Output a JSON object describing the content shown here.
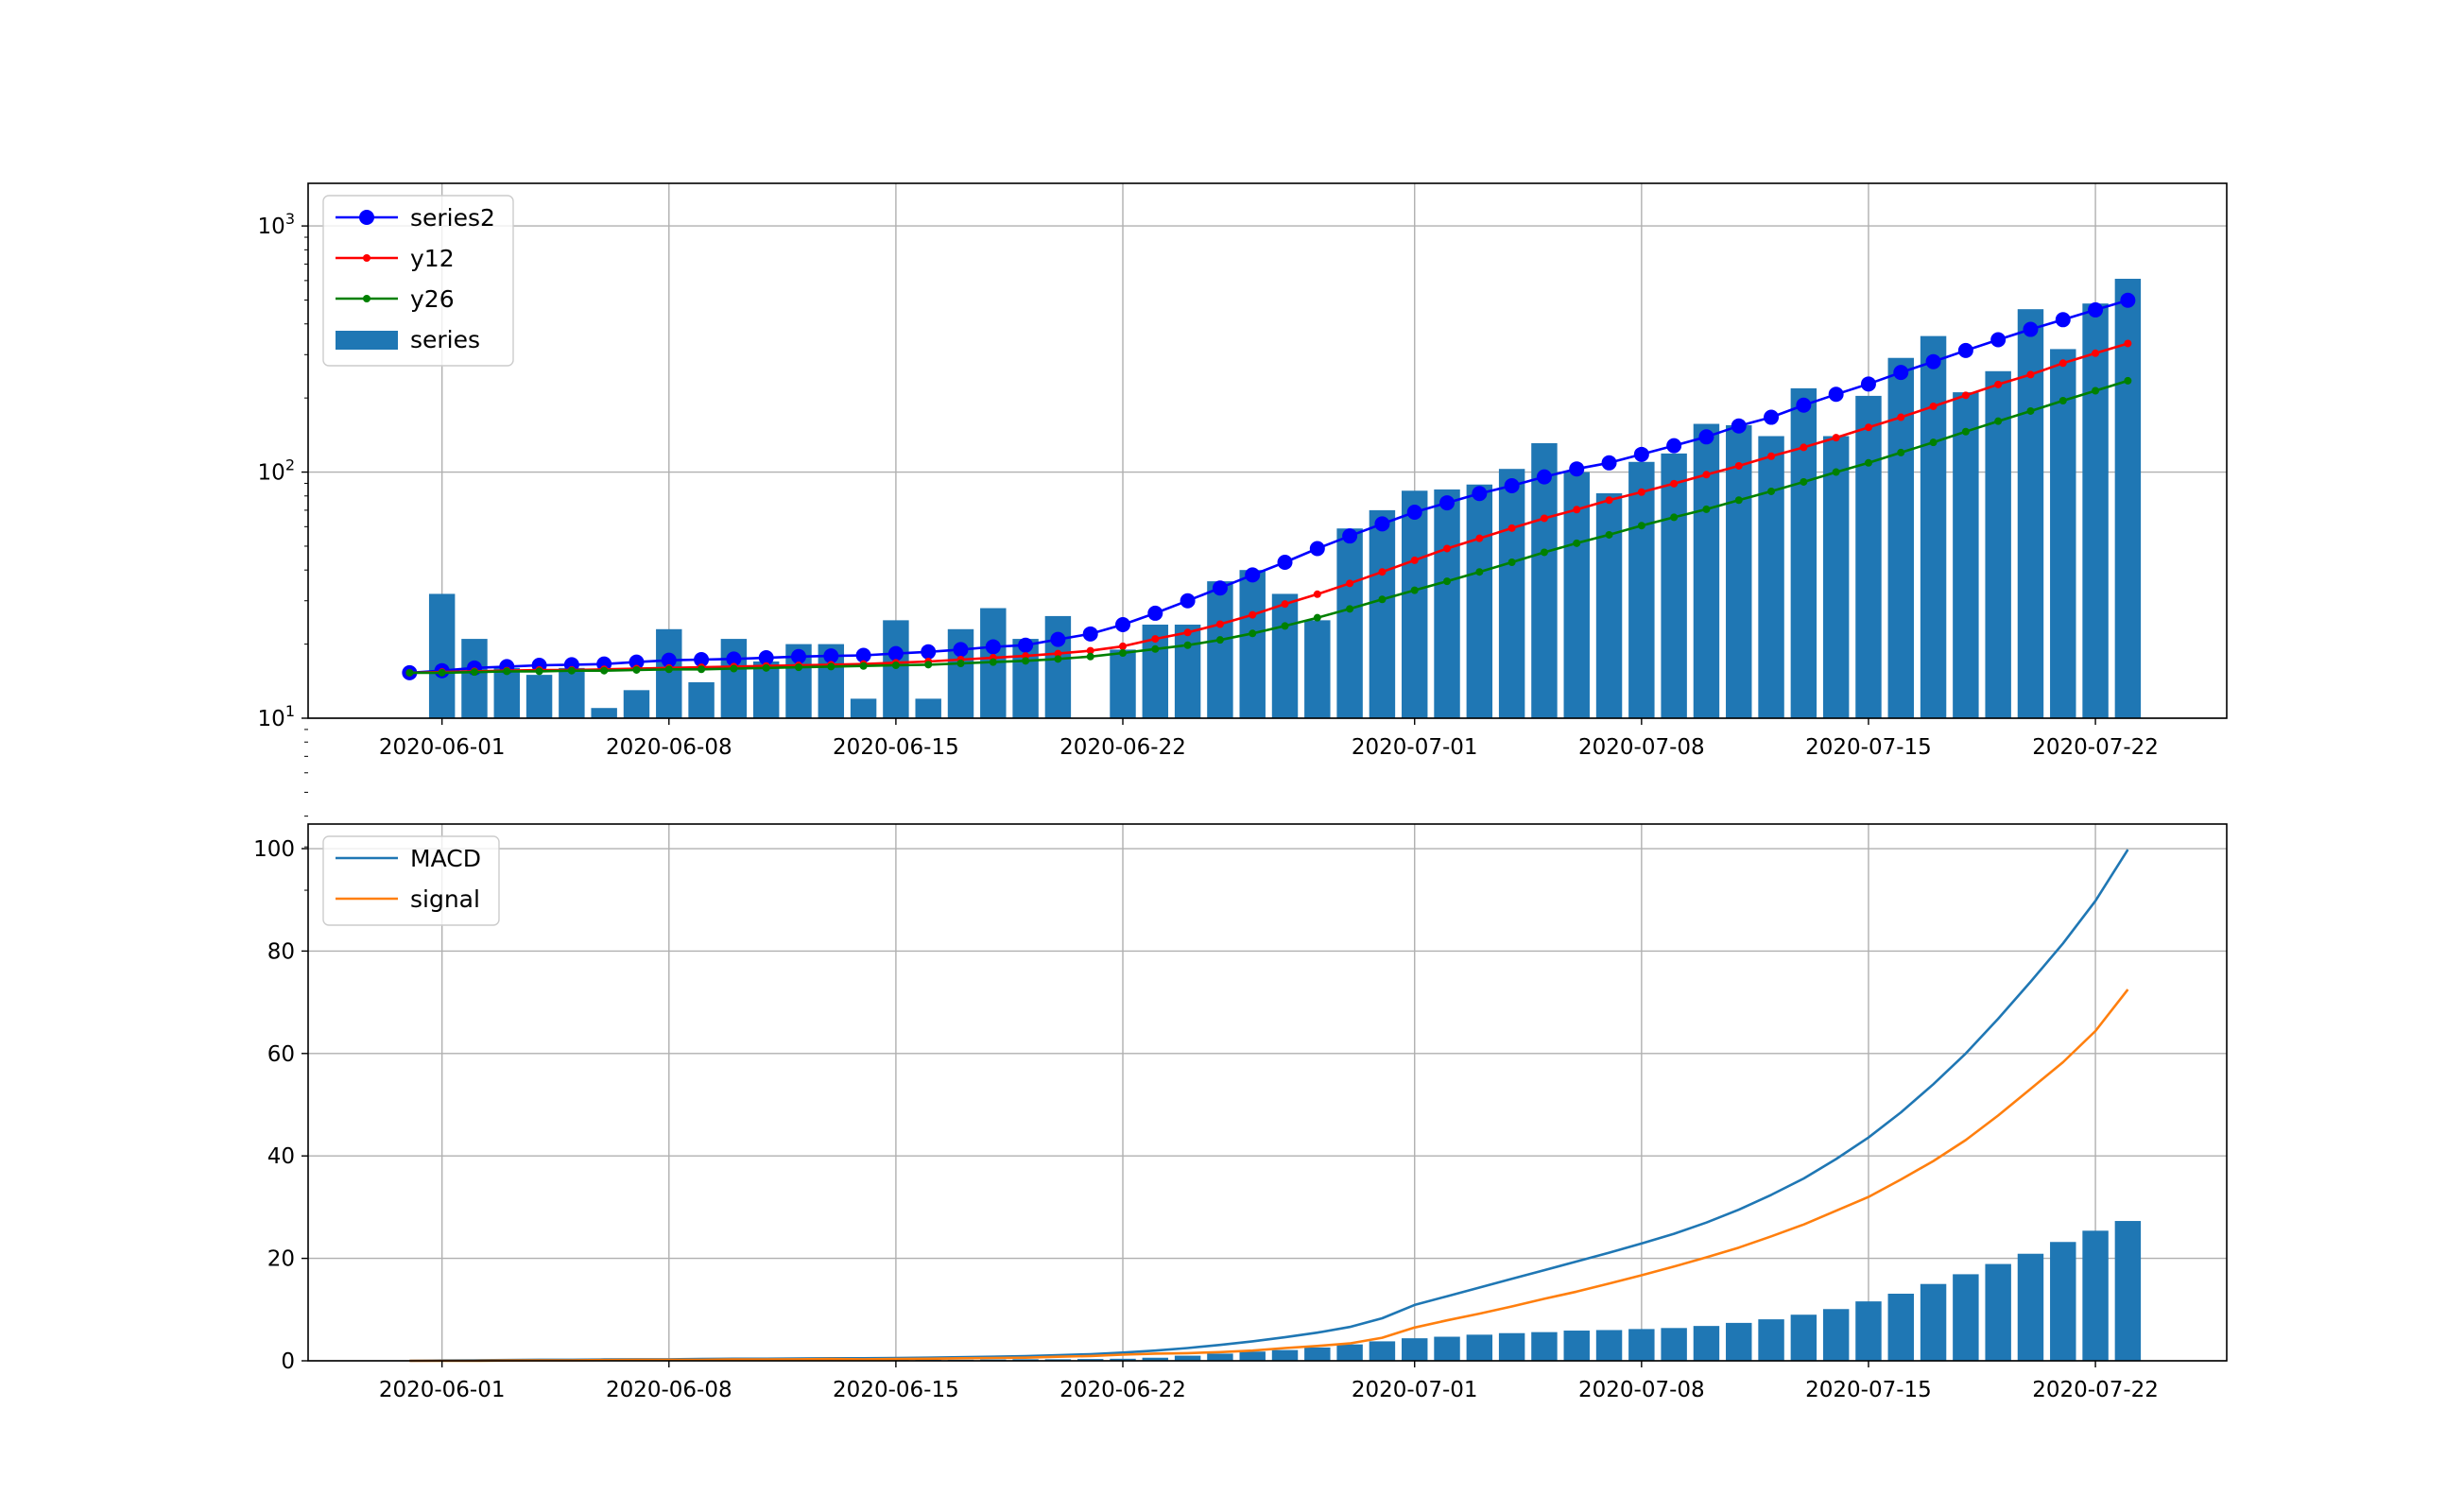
{
  "chart_data": [
    {
      "type": "bar+line",
      "title": "",
      "xlabel": "",
      "ylabel": "",
      "yscale": "log",
      "ylim": [
        10,
        1490
      ],
      "xlim": [
        "2020-05-28",
        "2020-07-26"
      ],
      "grid": true,
      "legend_position": "top-left",
      "x_ticks": [
        "2020-06-01",
        "2020-06-08",
        "2020-06-15",
        "2020-06-22",
        "2020-07-01",
        "2020-07-08",
        "2020-07-15",
        "2020-07-22"
      ],
      "y_ticks": [
        {
          "base": "10",
          "exp": "1",
          "value": 10
        },
        {
          "base": "10",
          "exp": "2",
          "value": 100
        },
        {
          "base": "10",
          "exp": "3",
          "value": 1000
        }
      ],
      "start_date": "2020-05-31",
      "series": [
        {
          "name": "series2",
          "kind": "line",
          "color": "#0000ff",
          "marker": "large-dot",
          "values": [
            15.3,
            15.6,
            16.0,
            16.2,
            16.4,
            16.5,
            16.6,
            16.9,
            17.2,
            17.3,
            17.4,
            17.6,
            17.8,
            17.9,
            18.0,
            18.3,
            18.6,
            19.0,
            19.5,
            19.8,
            20.9,
            22.0,
            24.0,
            26.7,
            30,
            33.8,
            38.2,
            43,
            48.9,
            55,
            61.6,
            68.7,
            75,
            81.8,
            88,
            95.6,
            103,
            109,
            118,
            128,
            139,
            154,
            167,
            187,
            207,
            228,
            254,
            281,
            312,
            345,
            380,
            416,
            456,
            499
          ]
        },
        {
          "name": "y12",
          "kind": "line",
          "color": "#ff0000",
          "marker": "small-dot",
          "values": [
            15.3,
            15.4,
            15.5,
            15.6,
            15.7,
            15.7,
            15.8,
            15.9,
            16.0,
            16.1,
            16.2,
            16.3,
            16.4,
            16.5,
            16.6,
            16.8,
            17.0,
            17.3,
            17.6,
            17.9,
            18.3,
            18.8,
            19.6,
            21,
            22.3,
            24.1,
            26.3,
            29.1,
            31.9,
            35.3,
            39.3,
            43.8,
            48.9,
            53.8,
            59.2,
            64.9,
            70.4,
            76.9,
            82.9,
            89.7,
            97.6,
            106,
            116,
            126,
            138,
            152,
            167,
            185,
            205,
            227,
            249,
            277,
            304,
            333
          ]
        },
        {
          "name": "y26",
          "kind": "line",
          "color": "#008000",
          "marker": "small-dot",
          "values": [
            15.3,
            15.3,
            15.4,
            15.5,
            15.5,
            15.6,
            15.6,
            15.7,
            15.8,
            15.8,
            15.9,
            16.0,
            16.1,
            16.2,
            16.3,
            16.4,
            16.5,
            16.7,
            16.9,
            17.1,
            17.4,
            17.8,
            18.4,
            19.1,
            19.8,
            20.8,
            22.1,
            23.7,
            25.6,
            27.8,
            30.4,
            33.1,
            36,
            39.3,
            43,
            47.2,
            51.4,
            55.6,
            60.6,
            65.5,
            70.6,
            76.9,
            83.5,
            91.2,
            100,
            109,
            120,
            132,
            146,
            161,
            177,
            195,
            214,
            235
          ]
        },
        {
          "name": "series",
          "kind": "bar",
          "color": "#1f77b4",
          "values": [
            null,
            32,
            21,
            16,
            15,
            16,
            11,
            13,
            23,
            14,
            21,
            17,
            20,
            20,
            12,
            25,
            12,
            23,
            28,
            21,
            26,
            9,
            19,
            24,
            24,
            36,
            40,
            32,
            25,
            59,
            70,
            84,
            85,
            89,
            103,
            131,
            100,
            82,
            110,
            119,
            157,
            155,
            140,
            219,
            140,
            204,
            291,
            357,
            211,
            257,
            459,
            316,
            484,
            610
          ]
        }
      ]
    },
    {
      "type": "bar+line",
      "title": "",
      "xlabel": "",
      "ylabel": "",
      "yscale": "linear",
      "ylim": [
        0,
        104.8
      ],
      "xlim": [
        "2020-05-28",
        "2020-07-26"
      ],
      "grid": true,
      "legend_position": "top-left",
      "x_ticks": [
        "2020-06-01",
        "2020-06-08",
        "2020-06-15",
        "2020-06-22",
        "2020-07-01",
        "2020-07-08",
        "2020-07-15",
        "2020-07-22"
      ],
      "y_ticks": [
        {
          "label": "0",
          "value": 0
        },
        {
          "label": "20",
          "value": 20
        },
        {
          "label": "40",
          "value": 40
        },
        {
          "label": "60",
          "value": 60
        },
        {
          "label": "80",
          "value": 80
        },
        {
          "label": "100",
          "value": 100
        }
      ],
      "start_date": "2020-05-31",
      "series": [
        {
          "name": "MACD",
          "kind": "line",
          "color": "#1f77b4",
          "values": [
            0,
            0.05,
            0.1,
            0.15,
            0.2,
            0.2,
            0.25,
            0.3,
            0.3,
            0.35,
            0.4,
            0.4,
            0.45,
            0.5,
            0.5,
            0.55,
            0.6,
            0.7,
            0.8,
            0.9,
            1.1,
            1.3,
            1.6,
            2.0,
            2.5,
            3.1,
            3.8,
            4.6,
            5.5,
            6.6,
            8.3,
            10.9,
            12.6,
            14.3,
            16.0,
            17.7,
            19.4,
            21.1,
            22.9,
            24.8,
            27.0,
            29.5,
            32.4,
            35.6,
            39.4,
            43.6,
            48.5,
            54.0,
            60.0,
            66.8,
            74.0,
            81.5,
            89.8,
            99.8
          ]
        },
        {
          "name": "signal",
          "kind": "line",
          "color": "#ff7f0e",
          "values": [
            0,
            0,
            0,
            0.05,
            0.1,
            0.1,
            0.15,
            0.2,
            0.2,
            0.2,
            0.25,
            0.25,
            0.3,
            0.35,
            0.3,
            0.35,
            0.4,
            0.5,
            0.55,
            0.6,
            0.8,
            0.95,
            1.2,
            1.4,
            1.5,
            1.7,
            2.0,
            2.5,
            2.9,
            3.4,
            4.5,
            6.5,
            7.9,
            9.2,
            10.6,
            12.1,
            13.5,
            15.1,
            16.7,
            18.4,
            20.2,
            22.1,
            24.3,
            26.6,
            29.3,
            32.0,
            35.4,
            39.0,
            43.1,
            47.9,
            53.1,
            58.3,
            64.4,
            72.5
          ]
        },
        {
          "kind": "bar",
          "color": "#1f77b4",
          "values": [
            0.05,
            0.1,
            0.1,
            0.1,
            0.1,
            0.1,
            0.1,
            0.1,
            0.1,
            0.15,
            0.15,
            0.15,
            0.15,
            0.15,
            0.2,
            0.2,
            0.2,
            0.2,
            0.25,
            0.3,
            0.3,
            0.35,
            0.4,
            0.6,
            1.0,
            1.4,
            1.8,
            2.1,
            2.6,
            3.2,
            3.8,
            4.4,
            4.7,
            5.1,
            5.4,
            5.6,
            5.9,
            6.0,
            6.2,
            6.4,
            6.8,
            7.4,
            8.1,
            9.0,
            10.1,
            11.6,
            13.1,
            15.0,
            16.9,
            18.9,
            20.9,
            23.2,
            25.4,
            27.3
          ]
        }
      ]
    }
  ]
}
